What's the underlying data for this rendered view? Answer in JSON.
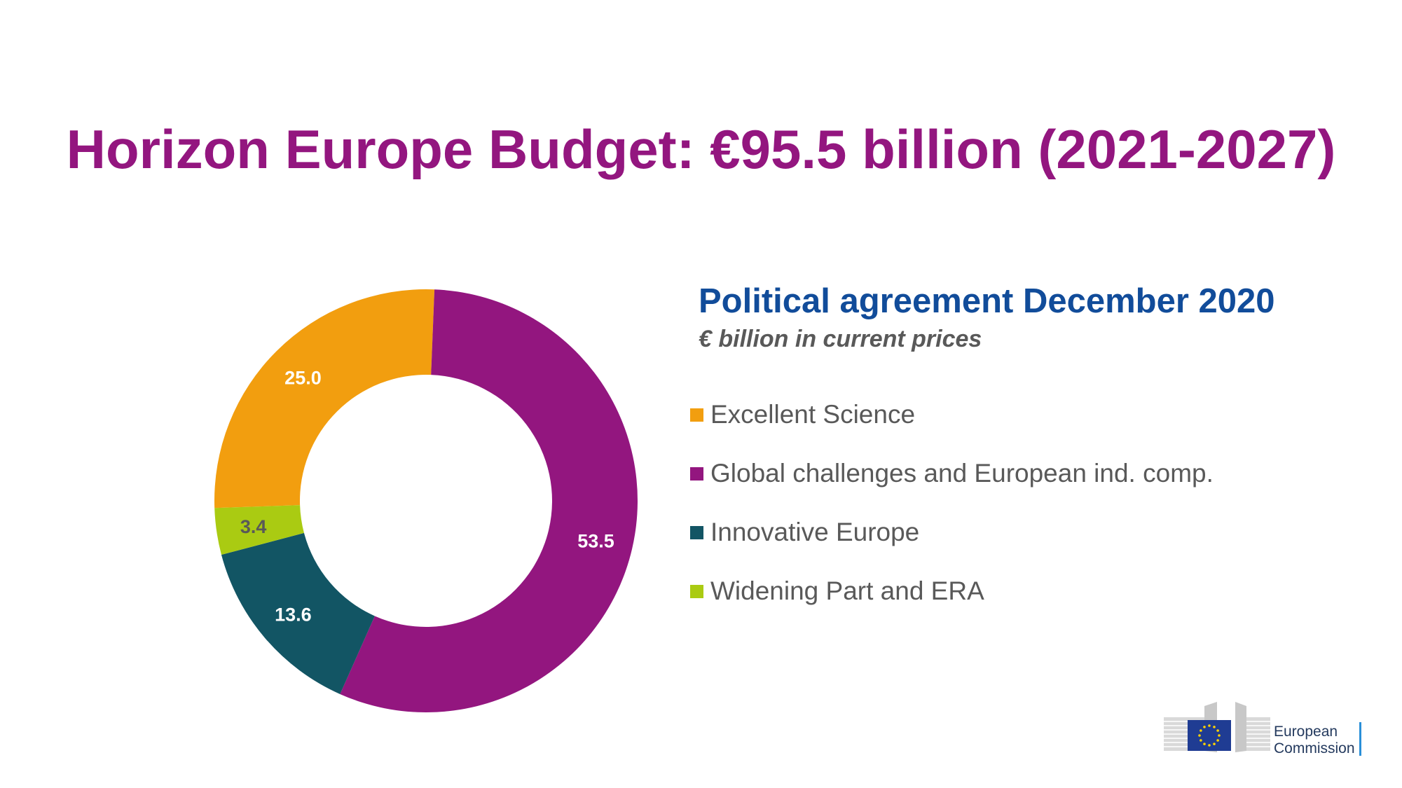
{
  "title": "Horizon Europe Budget: €95.5 billion (2021-2027)",
  "colors": {
    "title": "#93167F",
    "subtitle": "#114C9A",
    "excellent_science": "#F29E0F",
    "global_challenges": "#93167F",
    "innovative_europe": "#125564",
    "widening": "#AACB12"
  },
  "chart_data": {
    "type": "pie",
    "variant": "donut",
    "title": "Political agreement December 2020",
    "subtitle": "€ billion in current prices",
    "legend_position": "right",
    "series": [
      {
        "name": "Excellent Science",
        "value": 25.0,
        "label": "25.0",
        "color": "#F29E0F",
        "label_color": "#ffffff"
      },
      {
        "name": "Global challenges and European ind. comp.",
        "value": 53.5,
        "label": "53.5",
        "color": "#93167F",
        "label_color": "#ffffff"
      },
      {
        "name": "Innovative Europe",
        "value": 13.6,
        "label": "13.6",
        "color": "#125564",
        "label_color": "#ffffff"
      },
      {
        "name": "Widening Part and ERA",
        "value": 3.4,
        "label": "3.4",
        "color": "#AACB12",
        "label_color": "#595959"
      }
    ]
  },
  "logo": {
    "line1": "European",
    "line2": "Commission"
  }
}
